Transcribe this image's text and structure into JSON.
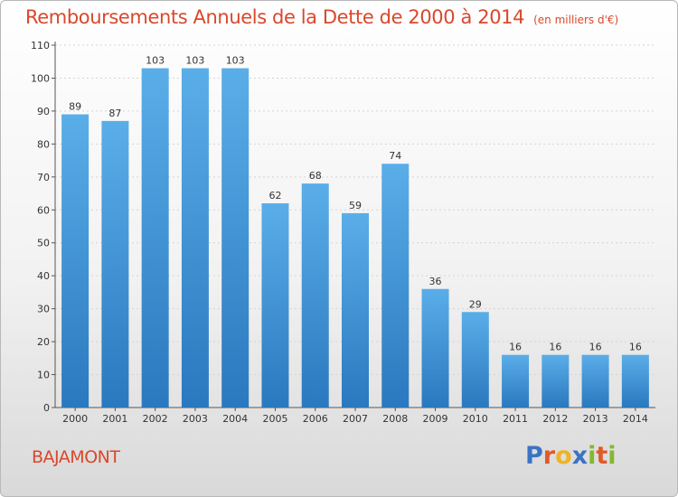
{
  "header": {
    "title": "Remboursements Annuels de la Dette de 2000 à 2014",
    "unit": "(en milliers d'€)"
  },
  "footer": {
    "commune": "BAJAMONT",
    "logo_letters": [
      {
        "ch": "P",
        "color": "#3b73c4"
      },
      {
        "ch": "r",
        "color": "#e05a2a"
      },
      {
        "ch": "o",
        "color": "#f0b323"
      },
      {
        "ch": "x",
        "color": "#3b73c4"
      },
      {
        "ch": "i",
        "color": "#84b830"
      },
      {
        "ch": "t",
        "color": "#e05a2a"
      },
      {
        "ch": "i",
        "color": "#84b830"
      }
    ]
  },
  "chart_data": {
    "type": "bar",
    "title": "Remboursements Annuels de la Dette de 2000 à 2014",
    "subtitle": "(en milliers d'€)",
    "categories": [
      "2000",
      "2001",
      "2002",
      "2003",
      "2004",
      "2005",
      "2006",
      "2007",
      "2008",
      "2009",
      "2010",
      "2011",
      "2012",
      "2013",
      "2014"
    ],
    "values": [
      89,
      87,
      103,
      103,
      103,
      62,
      68,
      59,
      74,
      36,
      29,
      16,
      16,
      16,
      16
    ],
    "ylim": [
      0,
      110
    ],
    "yticks": [
      0,
      10,
      20,
      30,
      40,
      50,
      60,
      70,
      80,
      90,
      100,
      110
    ],
    "grid": true,
    "bar_color_top": "#5aaee8",
    "bar_color_bottom": "#2a78bf"
  }
}
